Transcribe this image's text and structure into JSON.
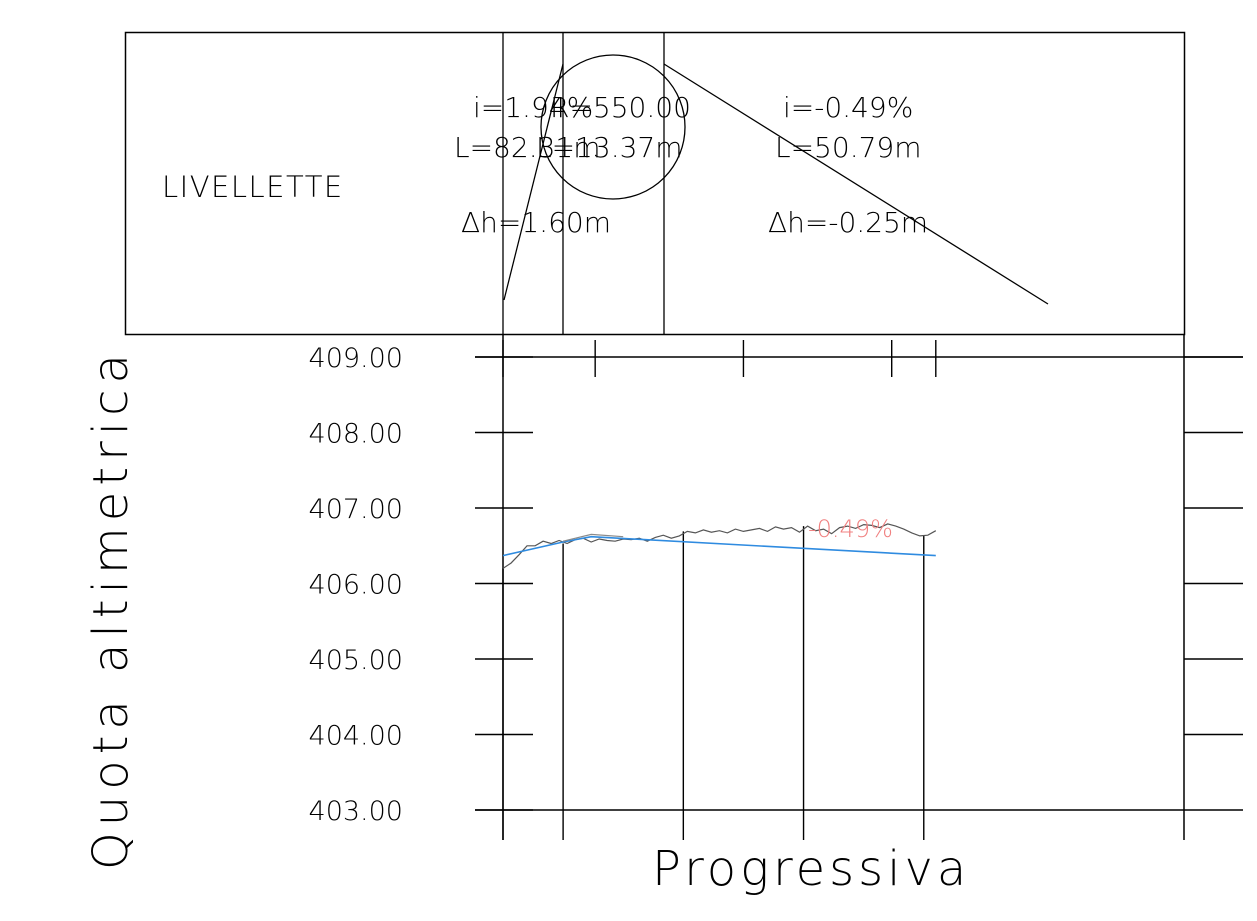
{
  "livellette_panel": {
    "label": "LIVELLETTE",
    "segment_1": {
      "slope": "i=1.94%",
      "length": "L=82.31m",
      "delta_h": "Δh=1.60m"
    },
    "vertical_curve": {
      "radius": "R=550.00",
      "length": "L=13.37m"
    },
    "segment_2": {
      "slope": "i=-0.49%",
      "length": "L=50.79m",
      "delta_h": "Δh=-0.25m"
    }
  },
  "chart_data": {
    "type": "line",
    "title": "",
    "xlabel": "Progressiva",
    "ylabel": "Quota altimetrica",
    "ylim": [
      403,
      409
    ],
    "xlim": [
      0,
      136
    ],
    "grid": false,
    "y_ticks": [
      "409.00",
      "408.00",
      "407.00",
      "406.00",
      "405.00",
      "404.00",
      "403.00"
    ],
    "y_tick_values": [
      409,
      408,
      407,
      406,
      405,
      404,
      403
    ],
    "station_lines_x": [
      0,
      15,
      45,
      75,
      105
    ],
    "top_tick_x": [
      0,
      23,
      60,
      97,
      108
    ],
    "slope_annotation": "-0.49%",
    "series": [
      {
        "key": "terrain",
        "color": "#555555",
        "x": [
          0,
          2,
          4,
          6,
          8,
          10,
          12,
          14,
          16,
          18,
          20,
          22,
          24,
          26,
          28,
          30,
          32,
          34,
          36,
          38,
          40,
          42,
          44,
          46,
          48,
          50,
          52,
          54,
          56,
          58,
          60,
          62,
          64,
          66,
          68,
          70,
          72,
          74,
          76,
          78,
          80,
          82,
          84,
          86,
          88,
          90,
          92,
          94,
          96,
          98,
          100,
          102,
          104,
          106,
          108
        ],
        "values": [
          406.2,
          406.27,
          406.38,
          406.5,
          406.5,
          406.56,
          406.53,
          406.57,
          406.53,
          406.58,
          406.6,
          406.55,
          406.59,
          406.57,
          406.56,
          406.59,
          406.58,
          406.6,
          406.56,
          406.61,
          406.64,
          406.6,
          406.63,
          406.69,
          406.67,
          406.71,
          406.68,
          406.7,
          406.67,
          406.72,
          406.69,
          406.71,
          406.73,
          406.69,
          406.75,
          406.72,
          406.74,
          406.68,
          406.76,
          406.7,
          406.72,
          406.66,
          406.74,
          406.76,
          406.73,
          406.78,
          406.77,
          406.74,
          406.79,
          406.76,
          406.72,
          406.67,
          406.63,
          406.64,
          406.7
        ]
      },
      {
        "key": "design",
        "color": "#2f8be0",
        "x": [
          0,
          15,
          22,
          108
        ],
        "values": [
          406.37,
          406.55,
          406.62,
          406.37
        ]
      },
      {
        "key": "design_chord",
        "color": "#8a8a8a",
        "x": [
          15,
          22,
          30
        ],
        "values": [
          406.56,
          406.65,
          406.62
        ]
      }
    ]
  }
}
